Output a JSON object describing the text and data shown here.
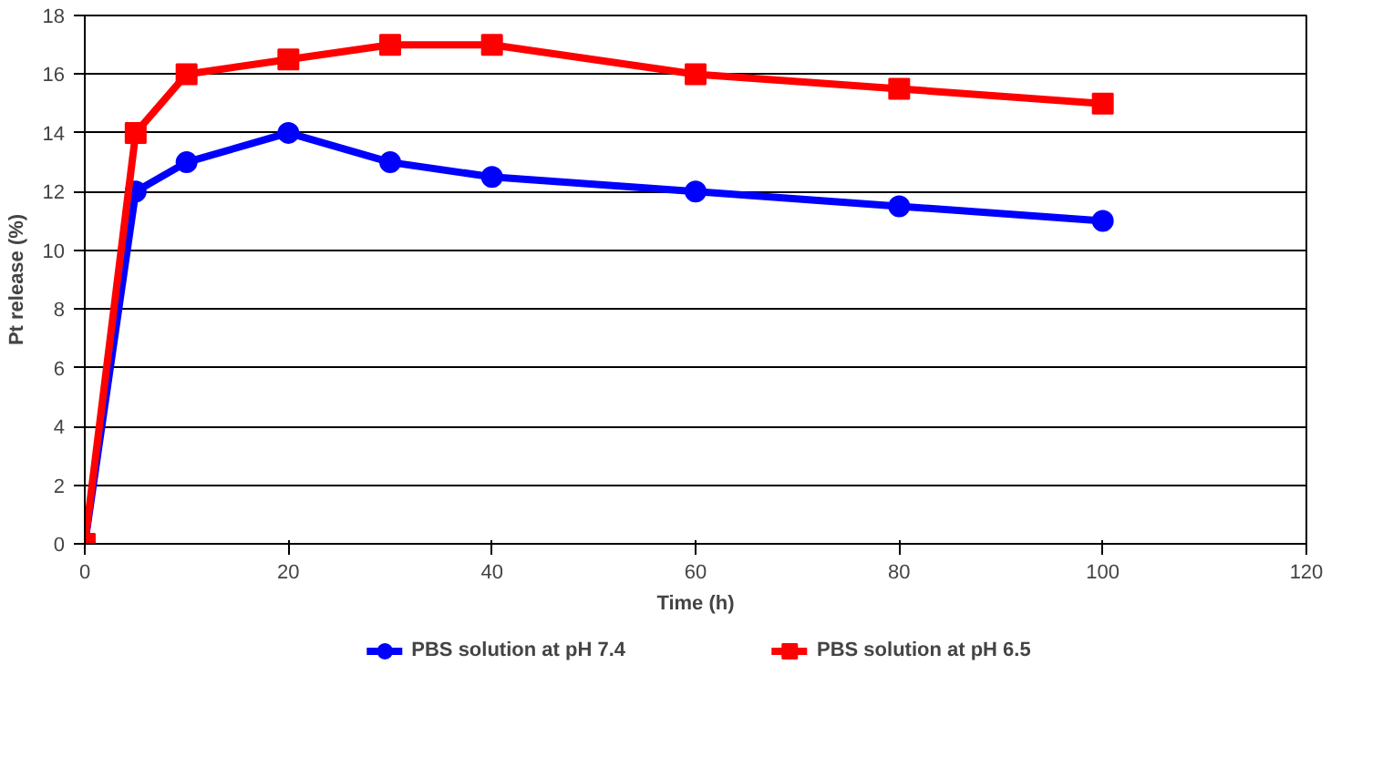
{
  "chart_data": {
    "type": "line",
    "xlabel": "Time (h)",
    "ylabel": "Pt release (%)",
    "xlim": [
      0,
      120
    ],
    "xticks": [
      0,
      20,
      40,
      60,
      80,
      100,
      120
    ],
    "ylim": [
      0,
      18
    ],
    "yticks": [
      0,
      2,
      4,
      6,
      8,
      10,
      12,
      14,
      16,
      18
    ],
    "grid": "y",
    "legend": "bottom",
    "line_style": "solid",
    "x": [
      0,
      5,
      10,
      20,
      30,
      40,
      60,
      80,
      100
    ],
    "series": [
      {
        "name": "PBS solution at pH 7.4",
        "color": "#0000ff",
        "marker": "circle",
        "values": [
          0,
          12,
          13,
          14,
          13,
          12.5,
          12,
          11.5,
          11
        ]
      },
      {
        "name": "PBS solution at pH 6.5",
        "color": "#ff0000",
        "marker": "square",
        "values": [
          0,
          14,
          16,
          16.5,
          17,
          17,
          16,
          15.5,
          15
        ]
      }
    ]
  }
}
